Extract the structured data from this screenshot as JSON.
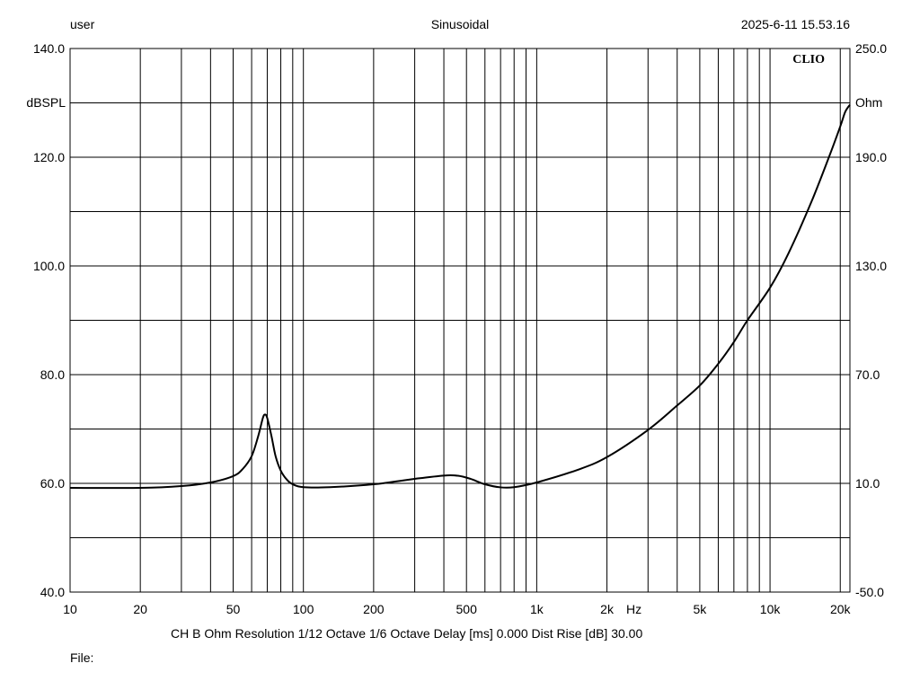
{
  "header": {
    "user": "user",
    "mode": "Sinusoidal",
    "datetime": "2025-6-11 15.53.16"
  },
  "brand": "CLIO",
  "footer": {
    "info": "CH B   Ohm   Resolution 1/12 Octave   1/6 Octave   Delay [ms] 0.000   Dist Rise [dB] 30.00",
    "file_label": "File:"
  },
  "chart_data": {
    "type": "line",
    "x_scale": "log",
    "xlim": [
      10,
      22000
    ],
    "x_unit": "Hz",
    "x_ticks": [
      {
        "value": 10,
        "label": "10"
      },
      {
        "value": 20,
        "label": "20"
      },
      {
        "value": 50,
        "label": "50"
      },
      {
        "value": 100,
        "label": "100"
      },
      {
        "value": 200,
        "label": "200"
      },
      {
        "value": 500,
        "label": "500"
      },
      {
        "value": 1000,
        "label": "1k"
      },
      {
        "value": 2000,
        "label": "2k"
      },
      {
        "value": 5000,
        "label": "5k"
      },
      {
        "value": 10000,
        "label": "10k"
      },
      {
        "value": 20000,
        "label": "20k"
      }
    ],
    "y_left": {
      "label": "dBSPL",
      "ylim": [
        40,
        140
      ],
      "ticks": [
        {
          "value": 40,
          "label": "40.0"
        },
        {
          "value": 60,
          "label": "60.0"
        },
        {
          "value": 80,
          "label": "80.0"
        },
        {
          "value": 100,
          "label": "100.0"
        },
        {
          "value": 120,
          "label": "120.0"
        },
        {
          "value": 140,
          "label": "140.0"
        }
      ]
    },
    "y_right": {
      "label": "Ohm",
      "ylim": [
        -50,
        250
      ],
      "ticks": [
        {
          "value": -50,
          "label": "-50.0"
        },
        {
          "value": 10,
          "label": "10.0"
        },
        {
          "value": 70,
          "label": "70.0"
        },
        {
          "value": 130,
          "label": "130.0"
        },
        {
          "value": 190,
          "label": "190.0"
        },
        {
          "value": 250,
          "label": "250.0"
        }
      ]
    },
    "grid": true,
    "series": [
      {
        "axis": "right",
        "color": "#000000",
        "points": [
          [
            10,
            7.5
          ],
          [
            20,
            7.5
          ],
          [
            30,
            8.5
          ],
          [
            40,
            10.5
          ],
          [
            50,
            14
          ],
          [
            55,
            18
          ],
          [
            60,
            25
          ],
          [
            64,
            36
          ],
          [
            67,
            46
          ],
          [
            68.5,
            48
          ],
          [
            70,
            46
          ],
          [
            73,
            36
          ],
          [
            76,
            25
          ],
          [
            80,
            17
          ],
          [
            85,
            12
          ],
          [
            90,
            9.5
          ],
          [
            100,
            7.9
          ],
          [
            130,
            7.9
          ],
          [
            200,
            9.5
          ],
          [
            300,
            12.5
          ],
          [
            400,
            14.3
          ],
          [
            460,
            14.2
          ],
          [
            520,
            12.5
          ],
          [
            600,
            9.5
          ],
          [
            700,
            7.8
          ],
          [
            800,
            7.9
          ],
          [
            1000,
            10.5
          ],
          [
            1500,
            17.5
          ],
          [
            2000,
            24.5
          ],
          [
            3000,
            39.5
          ],
          [
            4000,
            53
          ],
          [
            5000,
            64
          ],
          [
            6000,
            76
          ],
          [
            7000,
            88
          ],
          [
            8000,
            100
          ],
          [
            10000,
            118
          ],
          [
            12000,
            137
          ],
          [
            15000,
            165
          ],
          [
            18000,
            191
          ],
          [
            20000,
            207
          ],
          [
            21000,
            215
          ],
          [
            22000,
            219
          ]
        ]
      }
    ]
  }
}
